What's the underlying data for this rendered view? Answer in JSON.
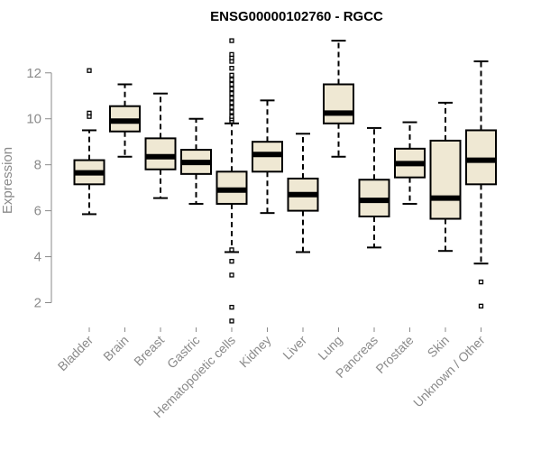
{
  "chart_data": {
    "type": "boxplot",
    "title": "ENSG00000102760 - RGCC",
    "xlabel": "",
    "ylabel": "Expression",
    "ylim": [
      1,
      13.6
    ],
    "yticks": [
      2,
      4,
      6,
      8,
      10,
      12
    ],
    "box_fill": "#efe8d3",
    "box_stroke": "#000000",
    "categories": [
      "Bladder",
      "Brain",
      "Breast",
      "Gastric",
      "Hematopoietic cells",
      "Kidney",
      "Liver",
      "Lung",
      "Pancreas",
      "Prostate",
      "Skin",
      "Unknown / Other"
    ],
    "boxes": [
      {
        "whisker_low": 5.85,
        "q1": 7.15,
        "median": 7.65,
        "q3": 8.2,
        "whisker_high": 9.5,
        "outliers": [
          10.1,
          10.25,
          12.1
        ]
      },
      {
        "whisker_low": 8.35,
        "q1": 9.45,
        "median": 9.9,
        "q3": 10.55,
        "whisker_high": 11.5,
        "outliers": []
      },
      {
        "whisker_low": 6.55,
        "q1": 7.8,
        "median": 8.35,
        "q3": 9.15,
        "whisker_high": 11.1,
        "outliers": []
      },
      {
        "whisker_low": 6.3,
        "q1": 7.6,
        "median": 8.1,
        "q3": 8.65,
        "whisker_high": 10.0,
        "outliers": []
      },
      {
        "whisker_low": 4.2,
        "q1": 6.3,
        "median": 6.9,
        "q3": 7.7,
        "whisker_high": 9.8,
        "outliers": [
          1.2,
          1.8,
          3.2,
          3.8,
          4.3,
          9.9,
          10.0,
          10.1,
          10.3,
          10.5,
          10.7,
          10.9,
          11.1,
          11.3,
          11.5,
          11.7,
          11.9,
          12.2,
          12.5,
          12.65,
          12.8,
          13.4
        ]
      },
      {
        "whisker_low": 5.9,
        "q1": 7.7,
        "median": 8.45,
        "q3": 9.0,
        "whisker_high": 10.8,
        "outliers": []
      },
      {
        "whisker_low": 4.2,
        "q1": 6.0,
        "median": 6.7,
        "q3": 7.4,
        "whisker_high": 9.35,
        "outliers": []
      },
      {
        "whisker_low": 8.35,
        "q1": 9.8,
        "median": 10.25,
        "q3": 11.5,
        "whisker_high": 13.4,
        "outliers": []
      },
      {
        "whisker_low": 4.4,
        "q1": 5.75,
        "median": 6.45,
        "q3": 7.35,
        "whisker_high": 9.6,
        "outliers": []
      },
      {
        "whisker_low": 6.3,
        "q1": 7.45,
        "median": 8.05,
        "q3": 8.7,
        "whisker_high": 9.85,
        "outliers": []
      },
      {
        "whisker_low": 4.25,
        "q1": 5.65,
        "median": 6.55,
        "q3": 9.05,
        "whisker_high": 10.7,
        "outliers": []
      },
      {
        "whisker_low": 3.7,
        "q1": 7.15,
        "median": 8.2,
        "q3": 9.5,
        "whisker_high": 12.5,
        "outliers": [
          1.85,
          2.9
        ]
      }
    ]
  }
}
